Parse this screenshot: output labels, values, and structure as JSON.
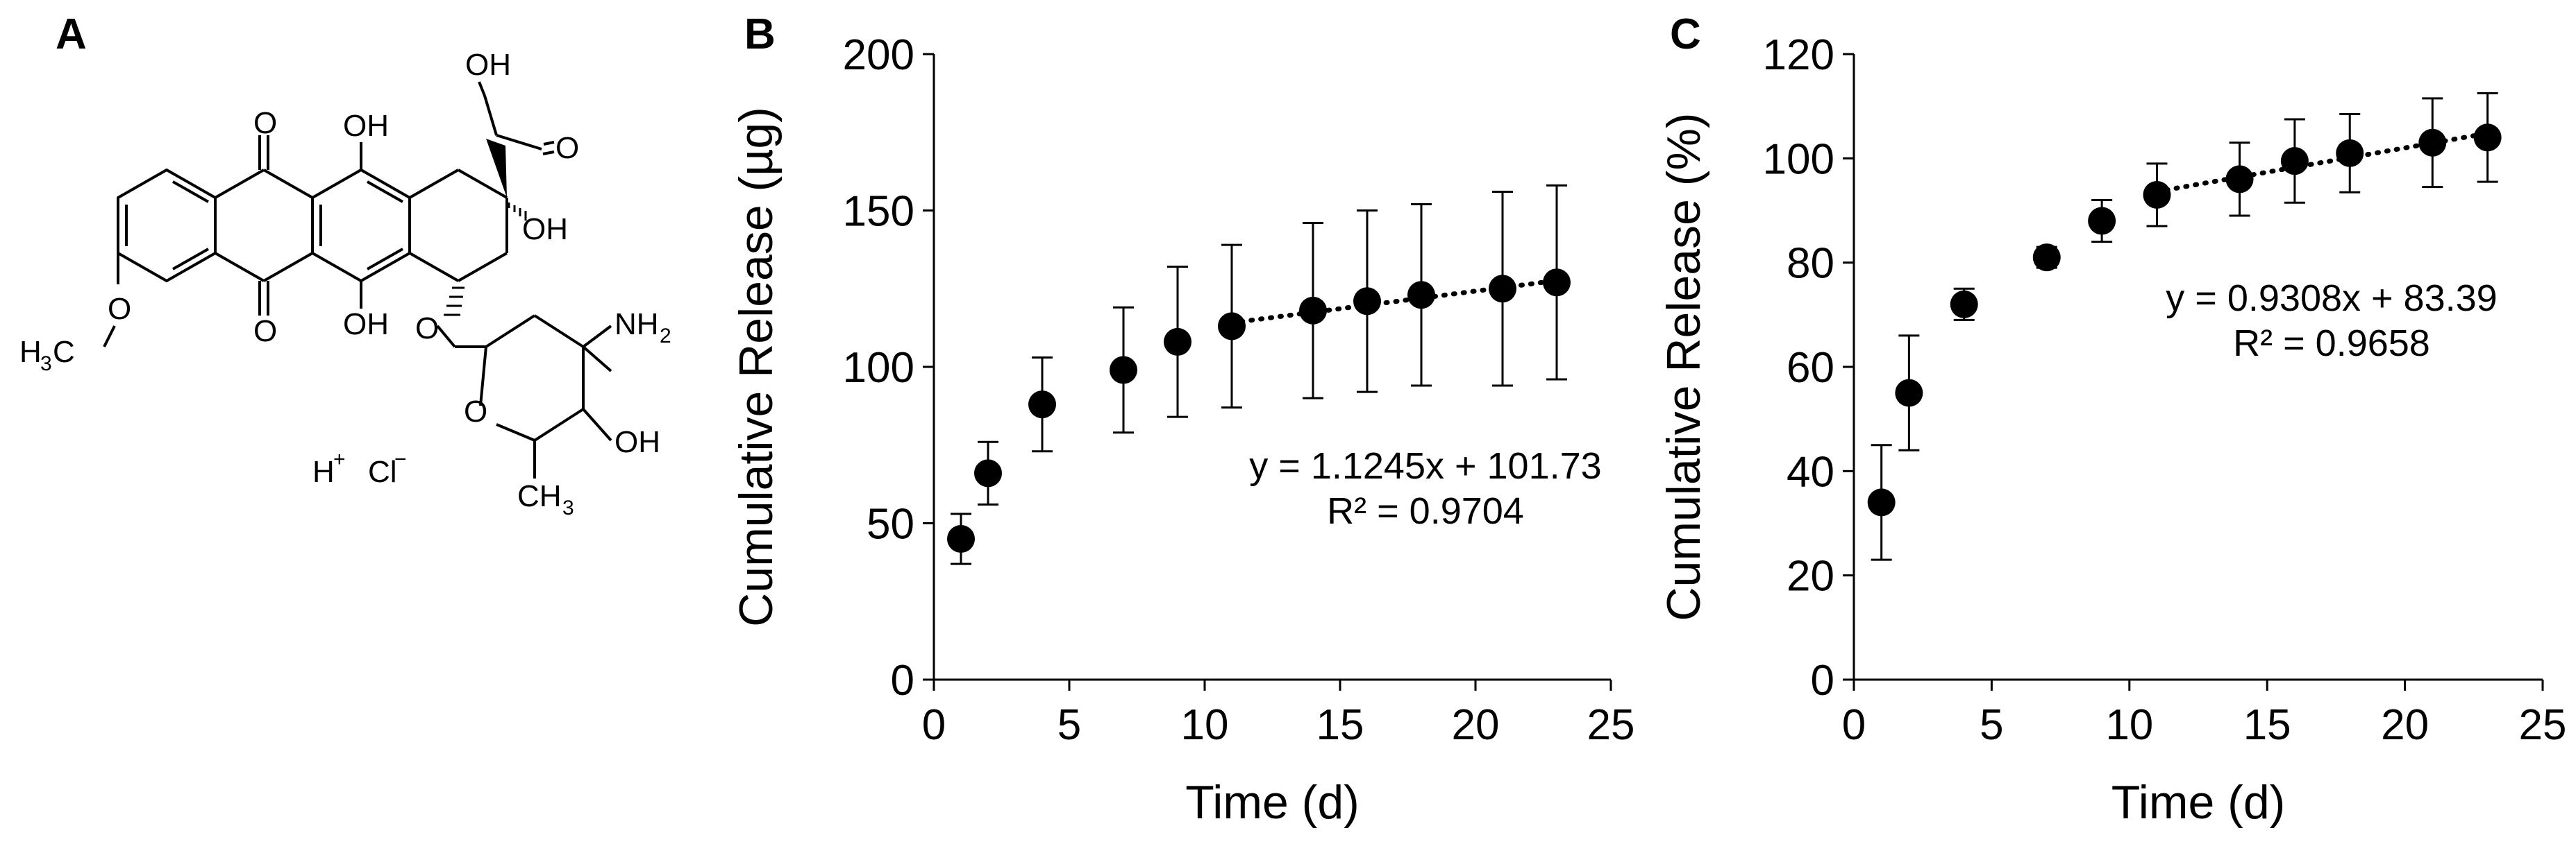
{
  "panels": {
    "a_letter": "A",
    "b_letter": "B",
    "c_letter": "C"
  },
  "structure": {
    "labels": {
      "o_top": "O",
      "oh_top": "OH",
      "oh_ch2": "OH",
      "o_ketone": "O",
      "oh_ring": "OH",
      "o_bottom": "O",
      "oh_bottom": "OH",
      "o_methoxy": "O",
      "h3c_main": "H",
      "h3c_sub": "3",
      "h3c_c": "C",
      "o_glyco": "O",
      "o_ring": "O",
      "nh_main": "NH",
      "nh_sub": "2",
      "oh_sugar": "OH",
      "ch_main": "CH",
      "ch_sub": "3",
      "h_main": "H",
      "h_sup": "+",
      "cl_main": "Cl",
      "cl_sup": "−"
    }
  },
  "chart_data": [
    {
      "id": "B",
      "type": "scatter",
      "title": "",
      "xlabel": "Time (d)",
      "ylabel": "Cumulative Release (µg)",
      "xlim": [
        0,
        25
      ],
      "ylim": [
        0,
        200
      ],
      "xticks": [
        "0",
        "5",
        "10",
        "15",
        "20",
        "25"
      ],
      "yticks": [
        "0",
        "50",
        "100",
        "150",
        "200"
      ],
      "grid": false,
      "x": [
        1,
        2,
        4,
        7,
        9,
        11,
        14,
        16,
        18,
        21,
        23
      ],
      "y": [
        45,
        66,
        88,
        99,
        108,
        113,
        118,
        121,
        123,
        125,
        127
      ],
      "error": [
        8,
        10,
        15,
        20,
        24,
        26,
        28,
        29,
        29,
        31,
        31
      ],
      "trendline": {
        "style": "dotted",
        "x_range": [
          11,
          23
        ],
        "slope": 1.1245,
        "intercept": 101.73
      },
      "equation": "y = 1.1245x + 101.73",
      "r2": "R² = 0.9704"
    },
    {
      "id": "C",
      "type": "scatter",
      "title": "",
      "xlabel": "Time (d)",
      "ylabel": "Cumulative Release (%)",
      "xlim": [
        0,
        25
      ],
      "ylim": [
        0,
        120
      ],
      "xticks": [
        "0",
        "5",
        "10",
        "15",
        "20",
        "25"
      ],
      "yticks": [
        "0",
        "20",
        "40",
        "60",
        "80",
        "100",
        "120"
      ],
      "grid": false,
      "x": [
        1,
        2,
        4,
        7,
        9,
        11,
        14,
        16,
        18,
        21,
        23
      ],
      "y": [
        34,
        55,
        72,
        81,
        88,
        93,
        96,
        99.5,
        101,
        103,
        104
      ],
      "error": [
        11,
        11,
        3,
        2,
        4,
        6,
        7,
        8,
        7.5,
        8.5,
        8.5
      ],
      "trendline": {
        "style": "dotted",
        "x_range": [
          11,
          23
        ],
        "slope": 0.9308,
        "intercept": 83.39
      },
      "equation": "y = 0.9308x + 83.39",
      "r2": "R² = 0.9658"
    }
  ]
}
